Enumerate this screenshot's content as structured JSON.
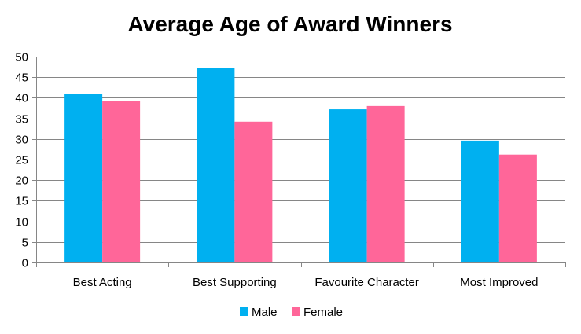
{
  "chart_data": {
    "type": "bar",
    "title": "Average Age of Award Winners",
    "xlabel": "",
    "ylabel": "",
    "ylim": [
      0,
      50
    ],
    "ytick_step": 5,
    "grid": true,
    "legend_position": "bottom",
    "categories": [
      "Best Acting",
      "Best Supporting",
      "Favourite Character",
      "Most Improved"
    ],
    "series": [
      {
        "name": "Male",
        "color": "#00B0F0",
        "values": [
          41,
          47.3,
          37.2,
          29.6
        ]
      },
      {
        "name": "Female",
        "color": "#FF6699",
        "values": [
          39.3,
          34.2,
          38,
          26.2
        ]
      }
    ]
  }
}
